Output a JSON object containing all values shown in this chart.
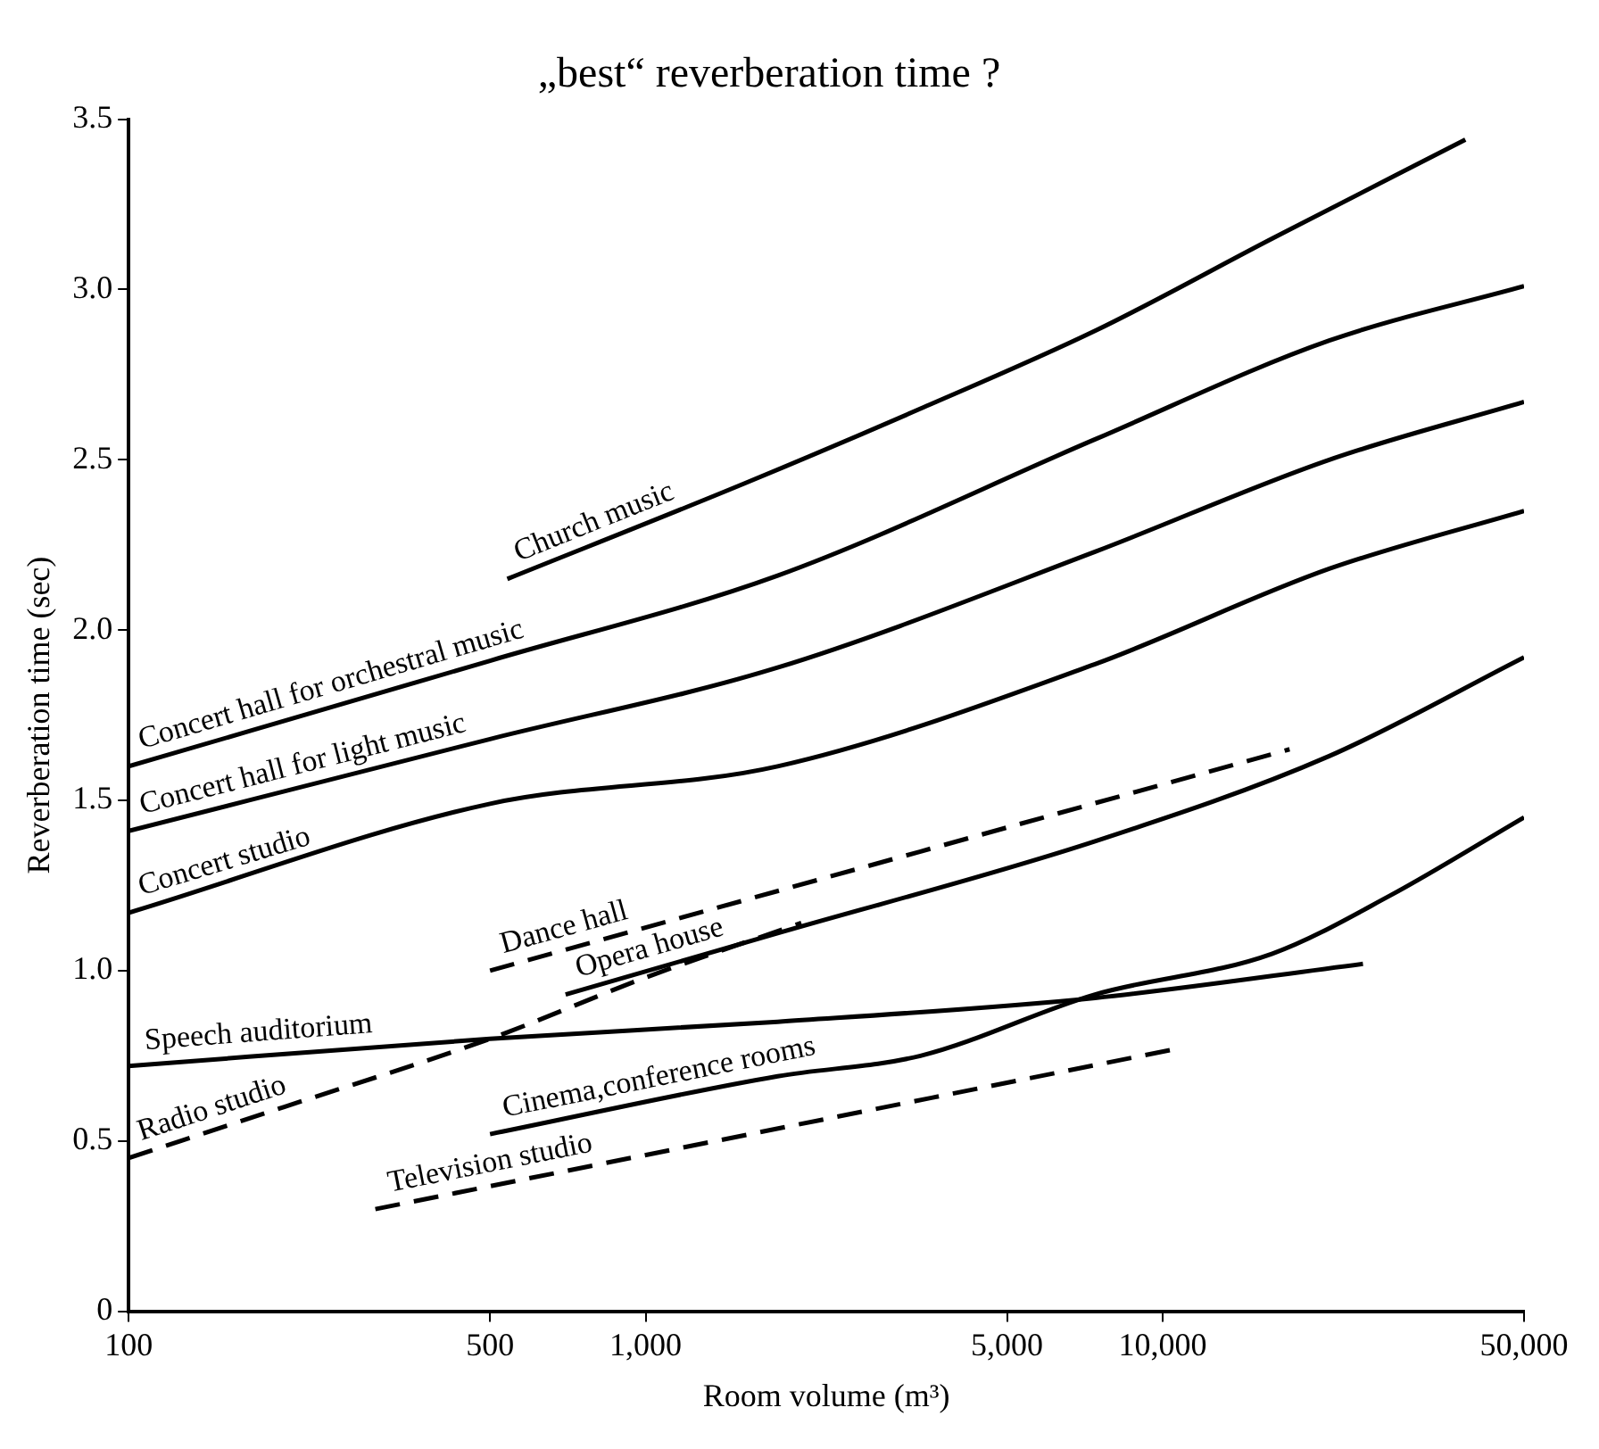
{
  "chart_data": {
    "type": "line",
    "title": "„best“ reverberation time ?",
    "xlabel": "Room volume (m³)",
    "ylabel": "Reverberation time (sec)",
    "log": "x",
    "xlim": [
      100,
      50000
    ],
    "xticks": [
      100,
      500,
      {
        "value": 1000,
        "label": "1,000"
      },
      {
        "value": 5000,
        "label": "5,000"
      },
      {
        "value": 10000,
        "label": "10,000"
      },
      {
        "value": 50000,
        "label": "50,000"
      }
    ],
    "ylim": [
      0,
      3.5
    ],
    "yticks": [
      0,
      0.5,
      {
        "value": 1,
        "label": "1.0"
      },
      1.5,
      {
        "value": 2,
        "label": "2.0"
      },
      2.5,
      {
        "value": 3,
        "label": "3.0"
      },
      3.5
    ],
    "grid": false,
    "marker": "none",
    "series": [
      {
        "name": "Church music",
        "color": "#000000",
        "line_style": "solid",
        "x": [
          540,
          1550,
          3400,
          7430,
          16300,
          38500
        ],
        "values": [
          2.15,
          2.43,
          2.65,
          2.88,
          3.15,
          3.44
        ]
      },
      {
        "name": "Concert hall for orchestral music",
        "color": "#000000",
        "line_style": "solid",
        "x": [
          100,
          500,
          1800,
          7400,
          21000,
          50000
        ],
        "values": [
          1.6,
          1.91,
          2.16,
          2.56,
          2.85,
          3.01
        ]
      },
      {
        "name": "Concert hall for light music",
        "color": "#000000",
        "line_style": "solid",
        "x": [
          100,
          500,
          1800,
          7400,
          21000,
          50000
        ],
        "values": [
          1.41,
          1.68,
          1.89,
          2.23,
          2.5,
          2.67
        ]
      },
      {
        "name": "Concert studio",
        "color": "#000000",
        "line_style": "solid",
        "x": [
          100,
          500,
          1800,
          7400,
          21000,
          50000
        ],
        "values": [
          1.17,
          1.49,
          1.6,
          1.9,
          2.18,
          2.35
        ]
      },
      {
        "name": "Dance hall",
        "color": "#000000",
        "line_style": "dashed",
        "x": [
          500,
          17600
        ],
        "values": [
          1.0,
          1.65
        ]
      },
      {
        "name": "Opera house",
        "color": "#000000",
        "line_style": "solid",
        "x": [
          700,
          1800,
          7400,
          21000,
          50000
        ],
        "values": [
          0.93,
          1.11,
          1.38,
          1.63,
          1.92
        ]
      },
      {
        "name": "Speech auditorium",
        "color": "#000000",
        "line_style": "solid",
        "x": [
          100,
          500,
          1800,
          7400,
          24400
        ],
        "values": [
          0.72,
          0.8,
          0.85,
          0.92,
          1.02
        ]
      },
      {
        "name": "Cinema,conference rooms",
        "color": "#000000",
        "line_style": "solid",
        "x": [
          500,
          1800,
          3400,
          7400,
          16300,
          27500,
          50000
        ],
        "values": [
          0.52,
          0.69,
          0.75,
          0.93,
          1.05,
          1.22,
          1.45
        ]
      },
      {
        "name": "Radio studio",
        "color": "#000000",
        "line_style": "dashed",
        "x": [
          100,
          200,
          500,
          1000,
          2000
        ],
        "values": [
          0.45,
          0.6,
          0.8,
          0.98,
          1.14
        ]
      },
      {
        "name": "Television studio",
        "color": "#000000",
        "line_style": "dashed",
        "x": [
          300,
          10600
        ],
        "values": [
          0.3,
          0.77
        ]
      }
    ]
  }
}
